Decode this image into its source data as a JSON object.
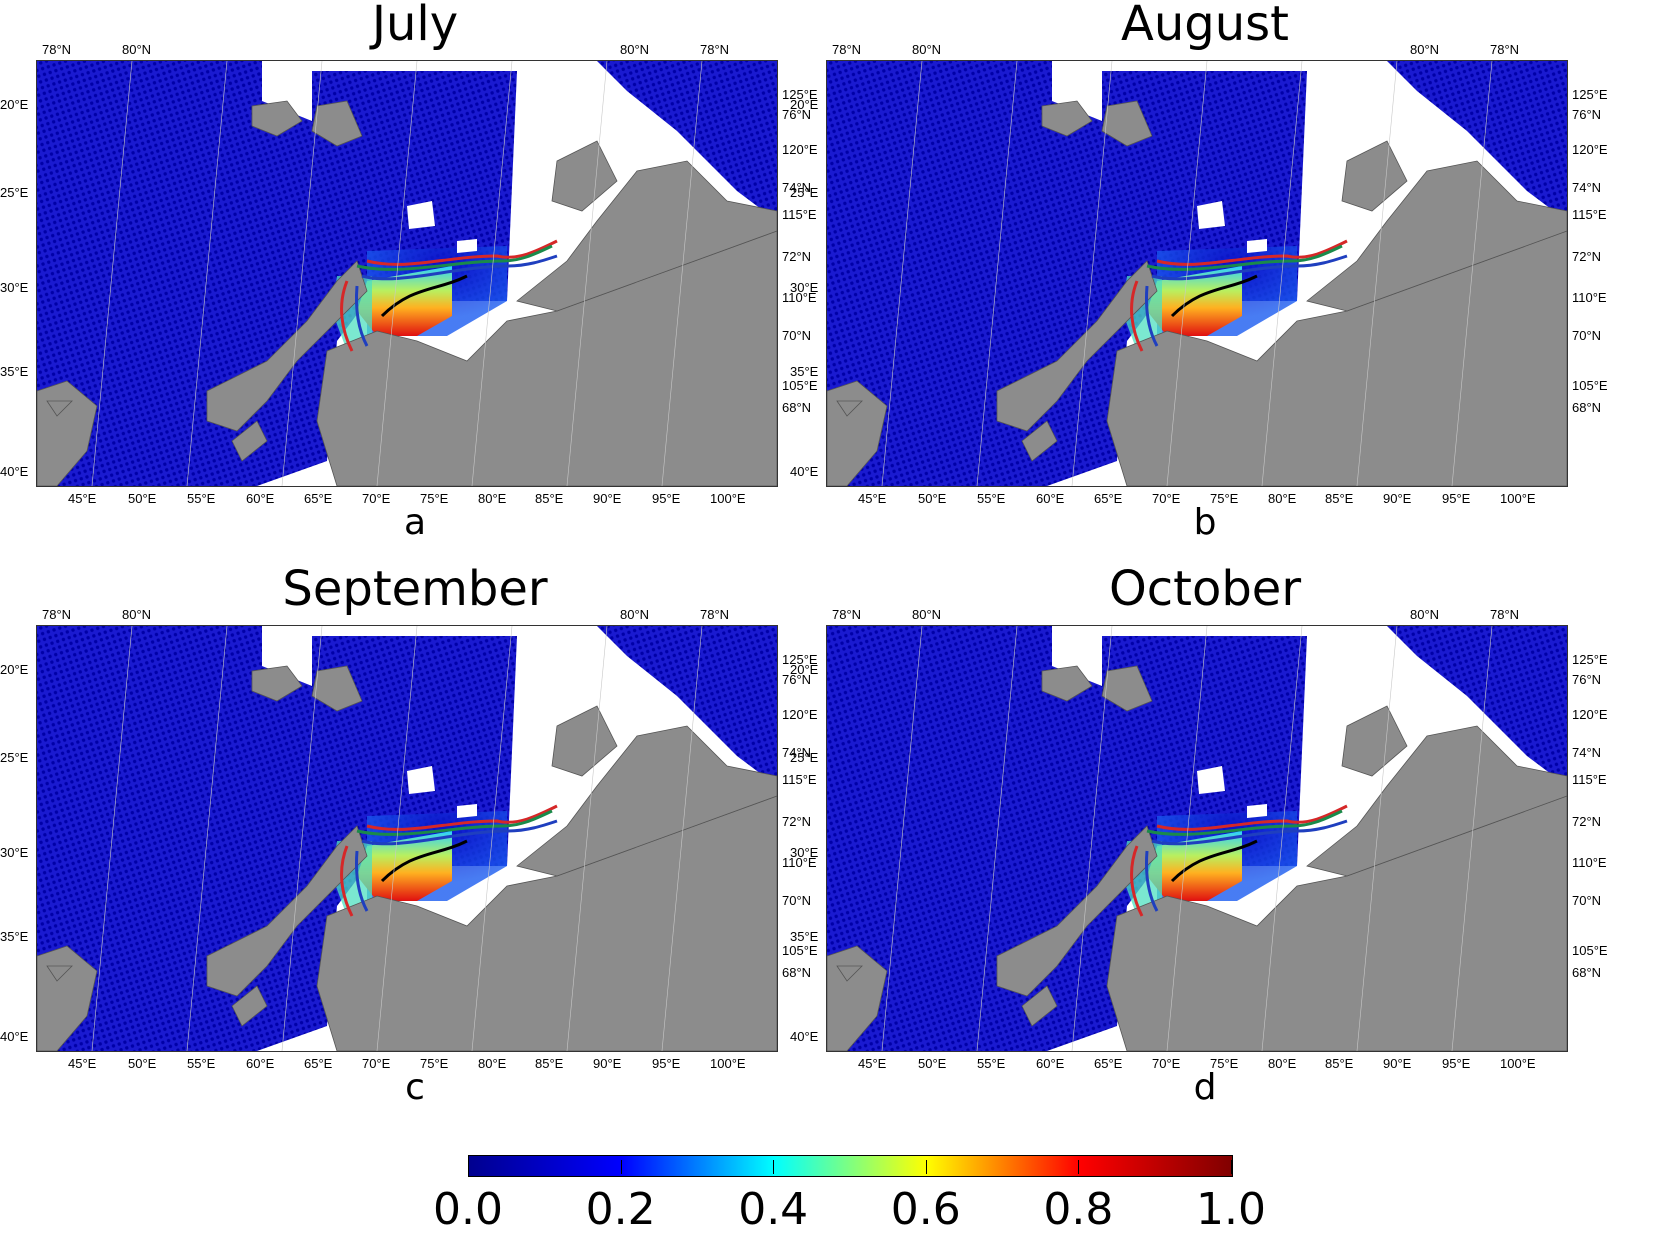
{
  "panels": [
    {
      "month": "July",
      "letter": "a"
    },
    {
      "month": "August",
      "letter": "b"
    },
    {
      "month": "September",
      "letter": "c"
    },
    {
      "month": "October",
      "letter": "d"
    }
  ],
  "lat_top_left": [
    "78°N",
    "80°N"
  ],
  "lat_top_right": [
    "80°N",
    "78°N"
  ],
  "left_axis": [
    "20°E",
    "25°E",
    "30°E",
    "35°E",
    "40°E"
  ],
  "right_axis": [
    "125°E",
    "76°N",
    "120°E",
    "74°N",
    "115°E",
    "72°N",
    "110°E",
    "70°N",
    "105°E",
    "68°N"
  ],
  "bottom_axis": [
    "45°E",
    "50°E",
    "55°E",
    "60°E",
    "65°E",
    "70°E",
    "75°E",
    "80°E",
    "85°E",
    "90°E",
    "95°E",
    "100°E"
  ],
  "colorbar": {
    "ticks": [
      "0.0",
      "0.2",
      "0.4",
      "0.6",
      "0.8",
      "1.0"
    ],
    "colormap": [
      "#00008f",
      "#0000ff",
      "#00ffff",
      "#ffff00",
      "#ff0000",
      "#800000"
    ]
  },
  "colors": {
    "land": "#8c8c8c",
    "ocean_low": "#0a0ab4",
    "contour_red": "#d62728",
    "contour_blue": "#1f3fbf",
    "contour_green": "#1a8a4a",
    "contour_black": "#000000"
  }
}
